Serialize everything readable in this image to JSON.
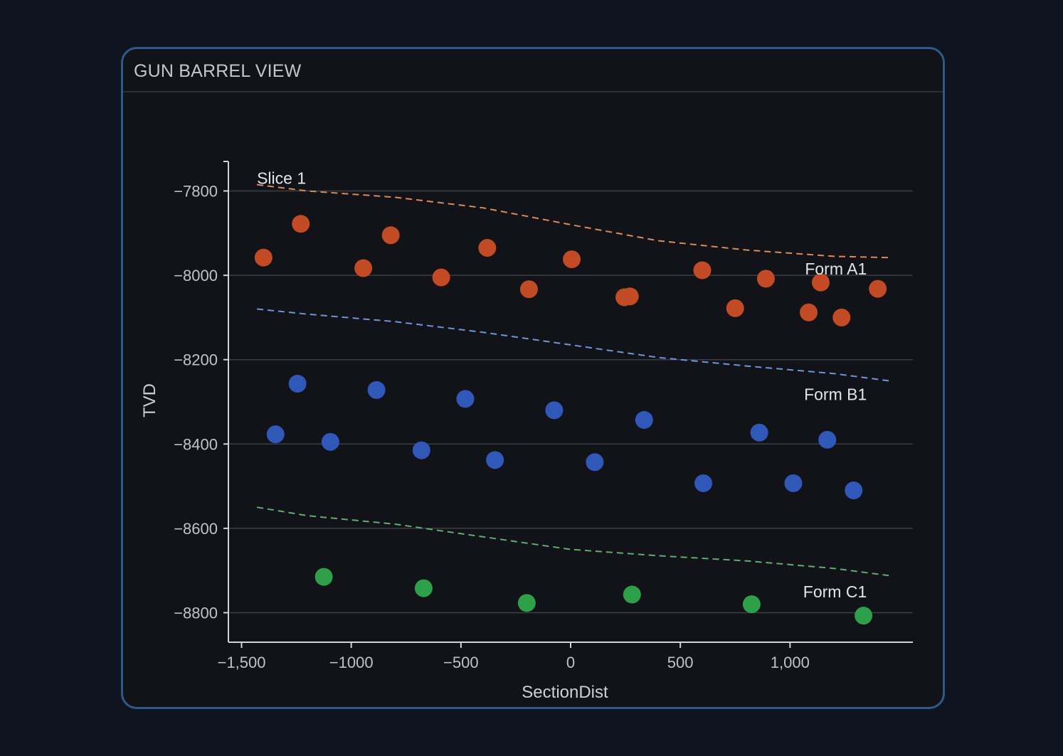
{
  "panel": {
    "title": "GUN BARREL VIEW"
  },
  "colors": {
    "page_bg": "#0f1520",
    "panel_bg": "#111318",
    "panel_border": "#2d5a8a",
    "grid": "#3a3e45",
    "axis": "#d0d3d8",
    "form_a1": "#c24a24",
    "form_b1": "#2f58b8",
    "form_c1": "#2fa04a",
    "top_a1": "#d98a5c",
    "top_b1": "#6f95d6",
    "top_c1": "#5fae6c"
  },
  "chart_data": {
    "type": "scatter",
    "xlabel": "SectionDist",
    "ylabel": "TVD",
    "xlim": [
      -1560,
      1560
    ],
    "ylim": [
      -8870,
      -7730
    ],
    "xticks": [
      -1500,
      -1000,
      -500,
      0,
      500,
      1000
    ],
    "xtick_labels": [
      "−1,500",
      "−1000",
      "−500",
      "0",
      "500",
      "1,000"
    ],
    "yticks": [
      -7800,
      -8000,
      -8200,
      -8400,
      -8600,
      -8800
    ],
    "ytick_labels": [
      "−7800",
      "−8000",
      "−8200",
      "−8400",
      "−8600",
      "−8800"
    ],
    "grid": true,
    "annotations": [
      {
        "text": "Slice 1",
        "x": -1430,
        "y": -7770
      },
      {
        "text": "Form A1",
        "x": 1350,
        "y": -7985
      },
      {
        "text": "Form B1",
        "x": 1350,
        "y": -8282
      },
      {
        "text": "Form C1",
        "x": 1350,
        "y": -8750
      }
    ],
    "tops": [
      {
        "key": "a1",
        "colorKey": "top_a1",
        "x": [
          -1430,
          -1200,
          -800,
          -400,
          0,
          400,
          800,
          1200,
          1450
        ],
        "y": [
          -7785,
          -7800,
          -7815,
          -7840,
          -7880,
          -7918,
          -7940,
          -7955,
          -7958
        ]
      },
      {
        "key": "b1",
        "colorKey": "top_b1",
        "x": [
          -1430,
          -1200,
          -800,
          -400,
          0,
          400,
          800,
          1200,
          1450
        ],
        "y": [
          -8080,
          -8092,
          -8110,
          -8135,
          -8165,
          -8195,
          -8215,
          -8233,
          -8250
        ]
      },
      {
        "key": "c1",
        "colorKey": "top_c1",
        "x": [
          -1430,
          -1200,
          -800,
          -400,
          0,
          400,
          800,
          1200,
          1450
        ],
        "y": [
          -8550,
          -8570,
          -8590,
          -8620,
          -8650,
          -8665,
          -8677,
          -8695,
          -8712
        ]
      }
    ],
    "series": [
      {
        "key": "a1",
        "colorKey": "form_a1",
        "x": [
          -1400,
          -1230,
          -945,
          -820,
          -590,
          -380,
          -190,
          5,
          245,
          270,
          600,
          750,
          890,
          1085,
          1140,
          1235,
          1400
        ],
        "y": [
          -7958,
          -7878,
          -7983,
          -7905,
          -8005,
          -7935,
          -8033,
          -7962,
          -8052,
          -8050,
          -7988,
          -8078,
          -8008,
          -8088,
          -8017,
          -8100,
          -8032
        ]
      },
      {
        "key": "b1",
        "colorKey": "form_b1",
        "x": [
          -1345,
          -1245,
          -1095,
          -885,
          -680,
          -480,
          -345,
          -75,
          110,
          335,
          605,
          860,
          1015,
          1170,
          1290
        ],
        "y": [
          -8377,
          -8257,
          -8395,
          -8272,
          -8415,
          -8293,
          -8438,
          -8320,
          -8443,
          -8343,
          -8493,
          -8373,
          -8493,
          -8390,
          -8510
        ]
      },
      {
        "key": "c1",
        "colorKey": "form_c1",
        "x": [
          -1125,
          -670,
          -200,
          280,
          825,
          1335
        ],
        "y": [
          -8715,
          -8742,
          -8777,
          -8757,
          -8780,
          -8807
        ]
      }
    ]
  }
}
